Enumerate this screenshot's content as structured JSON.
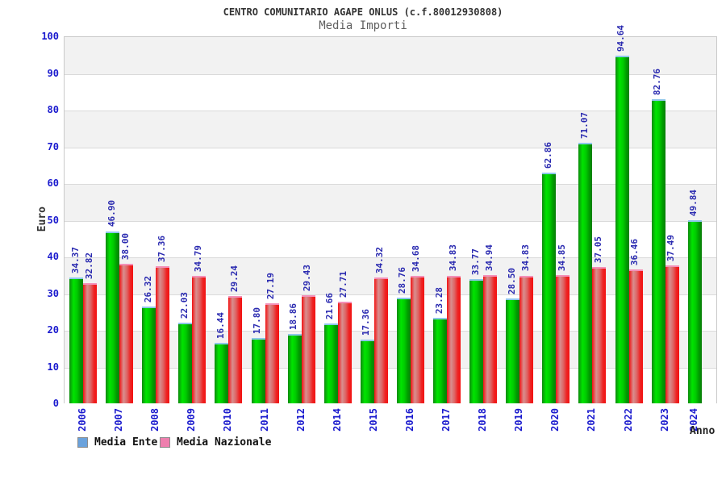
{
  "chart_data": {
    "type": "bar",
    "title": "CENTRO COMUNITARIO AGAPE ONLUS (c.f.80012930808)",
    "subtitle": "Media Importi",
    "xlabel": "Anno",
    "ylabel": "Euro",
    "ylim": [
      0,
      100
    ],
    "ytick_step": 10,
    "grid": "horizontal-bands-alternating",
    "band_colors": [
      "#f2f2f2",
      "#ffffff"
    ],
    "tick_label_color": "#1a1ace",
    "value_label_color": "#2a2ab0",
    "legend_position": "bottom-left",
    "categories": [
      "2006",
      "2007",
      "2008",
      "2009",
      "2010",
      "2011",
      "2012",
      "2014",
      "2015",
      "2016",
      "2017",
      "2018",
      "2019",
      "2020",
      "2021",
      "2022",
      "2023",
      "2024"
    ],
    "series": [
      {
        "name": "Media Ente",
        "legend_color": "#6aa2dc",
        "cap_color": "#8ec6ea",
        "bar_gradient": [
          "#0e8a0e",
          "#00e400",
          "#00cc00",
          "#009b00",
          "#0b7d0b"
        ],
        "values": [
          34.37,
          46.9,
          26.32,
          22.03,
          16.44,
          17.8,
          18.86,
          21.66,
          17.36,
          28.76,
          23.28,
          33.77,
          28.5,
          62.86,
          71.07,
          94.64,
          82.76,
          49.84
        ]
      },
      {
        "name": "Media Nazionale",
        "legend_color": "#ee7fae",
        "cap_color": "#f490b8",
        "bar_gradient": [
          "#f21212",
          "#d98f8f",
          "#dd6666",
          "#ee2222",
          "#f21212"
        ],
        "values": [
          32.82,
          38.0,
          37.36,
          34.79,
          29.24,
          27.19,
          29.43,
          27.71,
          34.32,
          34.68,
          34.83,
          34.94,
          34.83,
          34.85,
          37.05,
          36.46,
          37.49,
          null
        ]
      }
    ]
  }
}
